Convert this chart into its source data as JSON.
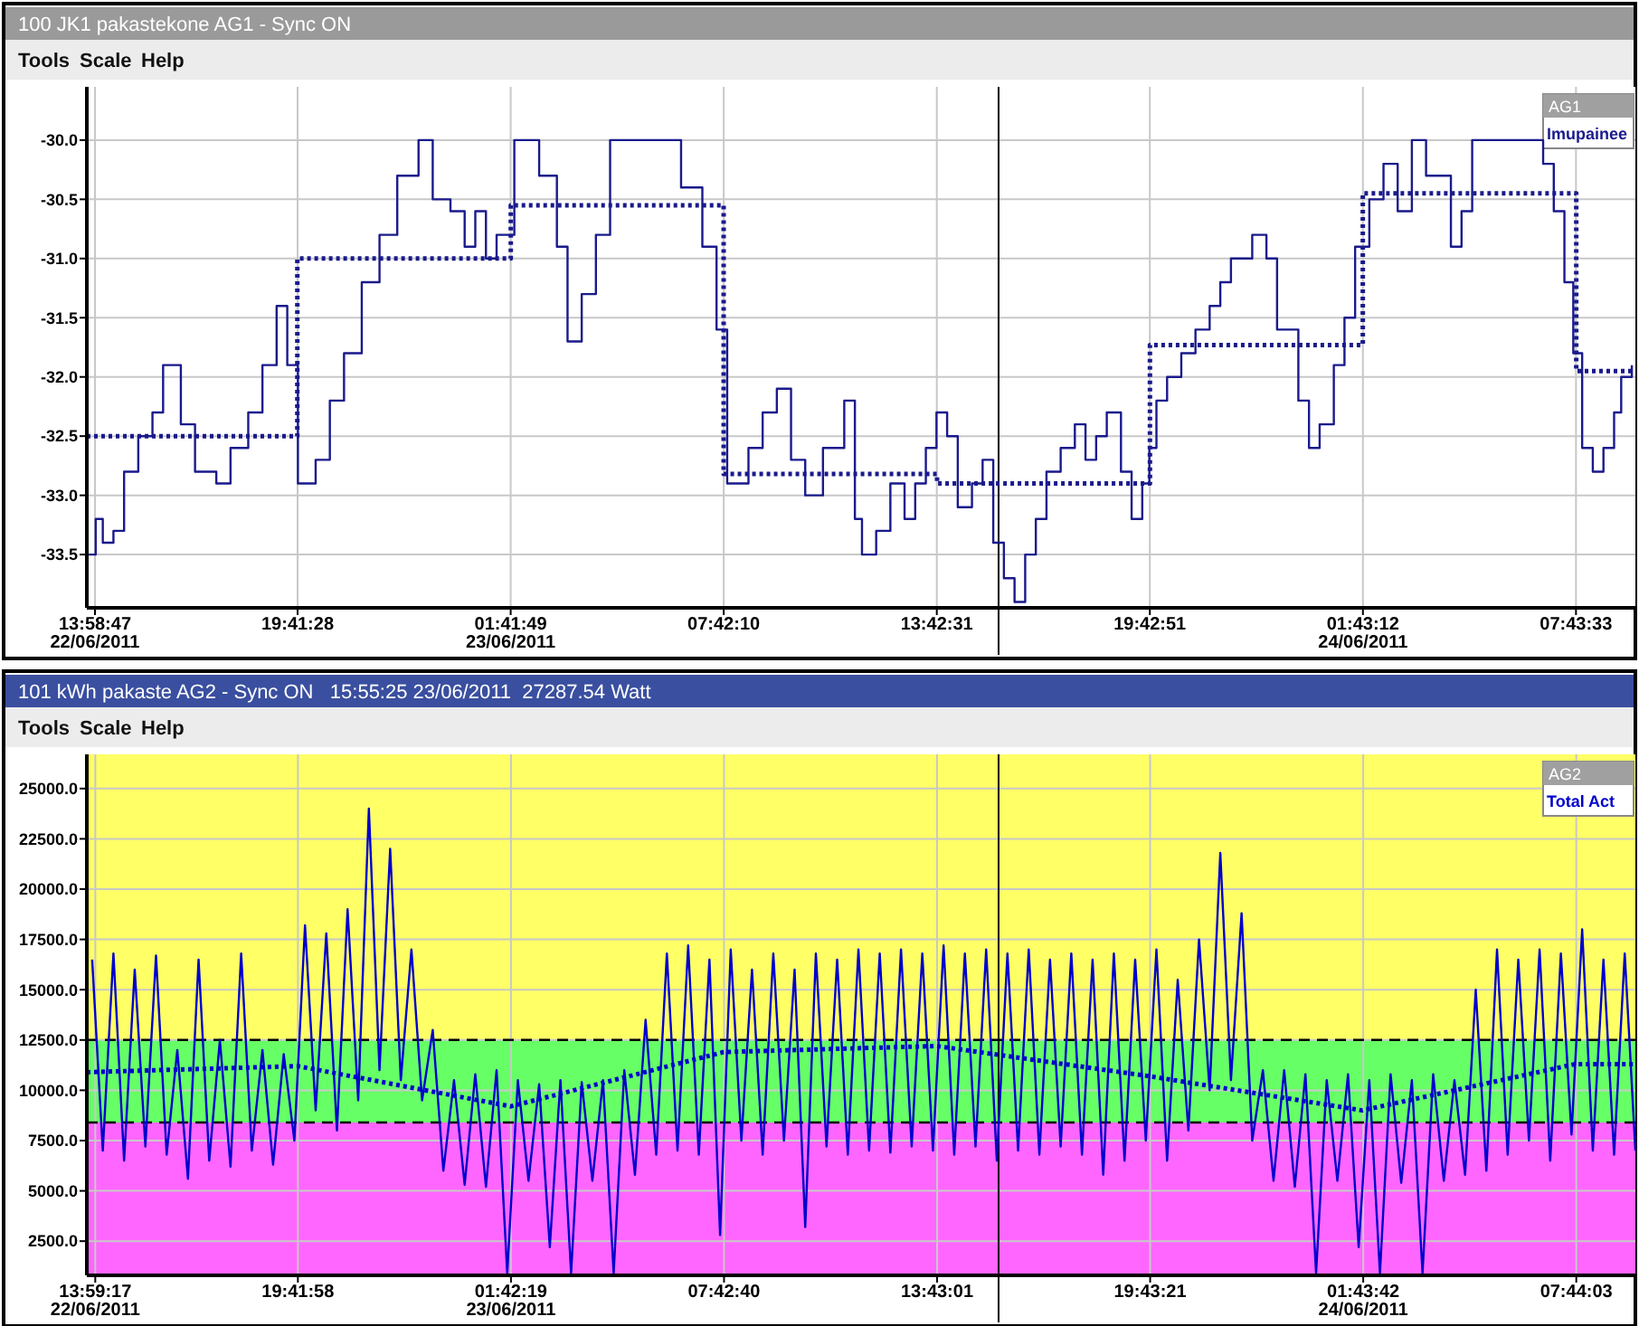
{
  "chart_data": [
    {
      "type": "step",
      "title": "100 JK1 pakastekone AG1 - Sync ON",
      "annotations": [
        "Tools",
        "Scale",
        "Help"
      ],
      "legend_title": "AG1",
      "legend": "top right",
      "grid": true,
      "marker": "none",
      "xlim": [
        "2011-06-22T13:45",
        "2011-06-24T09:24"
      ],
      "ylim": [
        -33.95,
        -29.55
      ],
      "xticks": [
        {
          "value": "2011-06-22T13:58:47",
          "label": "13:58:47\n22/06/2011"
        },
        {
          "value": "2011-06-22T19:41:28",
          "label": "19:41:28"
        },
        {
          "value": "2011-06-23T01:41:49",
          "label": "01:41:49\n23/06/2011"
        },
        {
          "value": "2011-06-23T07:42:10",
          "label": "07:42:10"
        },
        {
          "value": "2011-06-23T13:42:31",
          "label": "13:42:31"
        },
        {
          "value": "2011-06-23T19:42:51",
          "label": "19:42:51"
        },
        {
          "value": "2011-06-24T01:43:12",
          "label": "01:43:12\n24/06/2011"
        },
        {
          "value": "2011-06-24T07:43:33",
          "label": "07:43:33"
        }
      ],
      "yticks": [
        {
          "value": -33.5,
          "label": "-33.5"
        },
        {
          "value": -33,
          "label": "-33.0"
        },
        {
          "value": -32.5,
          "label": "-32.5"
        },
        {
          "value": -32,
          "label": "-32.0"
        },
        {
          "value": -31.5,
          "label": "-31.5"
        },
        {
          "value": -31,
          "label": "-31.0"
        },
        {
          "value": -30.5,
          "label": "-30.5"
        },
        {
          "value": -30,
          "label": "-30.0"
        }
      ],
      "ref_lines": [
        {
          "axis": "x",
          "value": "2011-06-23T15:27",
          "color": "#000000",
          "line_style": "solid"
        }
      ],
      "series": [
        {
          "name": "Imupainee",
          "color": "#1a1a8c",
          "line_style": "solid",
          "x": [
            "2011-06-22T13:48",
            "2011-06-22T14:00",
            "2011-06-22T14:12",
            "2011-06-22T14:30",
            "2011-06-22T14:48",
            "2011-06-22T15:12",
            "2011-06-22T15:36",
            "2011-06-22T15:54",
            "2011-06-22T16:24",
            "2011-06-22T16:48",
            "2011-06-22T17:24",
            "2011-06-22T17:48",
            "2011-06-22T18:18",
            "2011-06-22T18:42",
            "2011-06-22T19:06",
            "2011-06-22T19:24",
            "2011-06-22T19:42",
            "2011-06-22T20:12",
            "2011-06-22T20:36",
            "2011-06-22T21:00",
            "2011-06-22T21:30",
            "2011-06-22T22:00",
            "2011-06-22T22:30",
            "2011-06-22T23:06",
            "2011-06-22T23:30",
            "2011-06-23T00:00",
            "2011-06-23T00:24",
            "2011-06-23T00:42",
            "2011-06-23T01:00",
            "2011-06-23T01:18",
            "2011-06-23T01:48",
            "2011-06-23T02:30",
            "2011-06-23T03:00",
            "2011-06-23T03:18",
            "2011-06-23T03:42",
            "2011-06-23T04:06",
            "2011-06-23T04:30",
            "2011-06-23T06:30",
            "2011-06-23T07:06",
            "2011-06-23T07:30",
            "2011-06-23T07:48",
            "2011-06-23T08:24",
            "2011-06-23T08:48",
            "2011-06-23T09:12",
            "2011-06-23T09:36",
            "2011-06-23T10:00",
            "2011-06-23T10:30",
            "2011-06-23T11:06",
            "2011-06-23T11:24",
            "2011-06-23T11:36",
            "2011-06-23T12:00",
            "2011-06-23T12:24",
            "2011-06-23T12:48",
            "2011-06-23T13:06",
            "2011-06-23T13:24",
            "2011-06-23T13:42",
            "2011-06-23T14:00",
            "2011-06-23T14:18",
            "2011-06-23T14:42",
            "2011-06-23T15:00",
            "2011-06-23T15:18",
            "2011-06-23T15:36",
            "2011-06-23T15:54",
            "2011-06-23T16:12",
            "2011-06-23T16:30",
            "2011-06-23T16:48",
            "2011-06-23T17:12",
            "2011-06-23T17:36",
            "2011-06-23T17:54",
            "2011-06-23T18:12",
            "2011-06-23T18:30",
            "2011-06-23T18:54",
            "2011-06-23T19:12",
            "2011-06-23T19:30",
            "2011-06-23T19:42",
            "2011-06-23T19:54",
            "2011-06-23T20:12",
            "2011-06-23T20:36",
            "2011-06-23T21:00",
            "2011-06-23T21:24",
            "2011-06-23T21:42",
            "2011-06-23T22:00",
            "2011-06-23T22:36",
            "2011-06-23T23:00",
            "2011-06-23T23:18",
            "2011-06-23T23:54",
            "2011-06-24T00:12",
            "2011-06-24T00:30",
            "2011-06-24T00:54",
            "2011-06-24T01:12",
            "2011-06-24T01:30",
            "2011-06-24T01:54",
            "2011-06-24T02:18",
            "2011-06-24T02:42",
            "2011-06-24T03:06",
            "2011-06-24T03:30",
            "2011-06-24T04:12",
            "2011-06-24T04:30",
            "2011-06-24T04:48",
            "2011-06-24T06:48",
            "2011-06-24T07:06",
            "2011-06-24T07:24",
            "2011-06-24T07:39",
            "2011-06-24T07:54",
            "2011-06-24T08:12",
            "2011-06-24T08:30",
            "2011-06-24T08:48",
            "2011-06-24T09:00",
            "2011-06-24T09:18"
          ],
          "values": [
            -33.5,
            -33.2,
            -33.4,
            -33.3,
            -32.8,
            -32.5,
            -32.3,
            -31.9,
            -32.4,
            -32.8,
            -32.9,
            -32.6,
            -32.3,
            -31.9,
            -31.4,
            -31.9,
            -32.9,
            -32.7,
            -32.2,
            -31.8,
            -31.2,
            -30.8,
            -30.3,
            -30.0,
            -30.5,
            -30.6,
            -30.9,
            -30.6,
            -31.0,
            -30.8,
            -30.0,
            -30.3,
            -30.9,
            -31.7,
            -31.3,
            -30.8,
            -30.0,
            -30.4,
            -30.9,
            -31.6,
            -32.9,
            -32.6,
            -32.3,
            -32.1,
            -32.7,
            -33.0,
            -32.6,
            -32.2,
            -33.2,
            -33.5,
            -33.3,
            -32.9,
            -33.2,
            -32.9,
            -32.6,
            -32.3,
            -32.5,
            -33.1,
            -32.9,
            -32.7,
            -33.4,
            -33.7,
            -33.9,
            -33.5,
            -33.2,
            -32.8,
            -32.6,
            -32.4,
            -32.7,
            -32.5,
            -32.3,
            -32.8,
            -33.2,
            -32.9,
            -32.6,
            -32.2,
            -32.0,
            -31.8,
            -31.6,
            -31.4,
            -31.2,
            -31.0,
            -30.8,
            -31.0,
            -31.6,
            -32.2,
            -32.6,
            -32.4,
            -31.9,
            -31.5,
            -30.9,
            -30.5,
            -30.2,
            -30.6,
            -30.0,
            -30.3,
            -30.9,
            -30.6,
            -30.0,
            -30.2,
            -30.6,
            -31.2,
            -31.8,
            -32.6,
            -32.8,
            -32.6,
            -32.3,
            -32.0,
            -31.9
          ]
        },
        {
          "color": "#1a1a8c",
          "line_style": "dotted",
          "x": [
            "2011-06-22T13:45",
            "2011-06-22T19:41",
            "2011-06-23T01:42",
            "2011-06-23T07:42",
            "2011-06-23T13:43",
            "2011-06-23T19:43",
            "2011-06-24T01:43",
            "2011-06-24T07:44",
            "2011-06-24T09:24"
          ],
          "values": [
            -32.5,
            -31.0,
            -30.55,
            -32.82,
            -32.9,
            -31.73,
            -30.45,
            -31.95,
            -31.95
          ]
        }
      ]
    },
    {
      "type": "line",
      "title": "101 kWh pakaste AG2 - Sync ON   15:55:25 23/06/2011  27287.54 Watt",
      "annotations": [
        "Tools",
        "Scale",
        "Help"
      ],
      "legend_title": "AG2",
      "legend": "top right",
      "grid": true,
      "marker": "none",
      "xlim": [
        "2011-06-22T13:45",
        "2011-06-24T09:24"
      ],
      "ylim": [
        800,
        26700
      ],
      "xticks": [
        {
          "value": "2011-06-22T13:59:17",
          "label": "13:59:17\n22/06/2011"
        },
        {
          "value": "2011-06-22T19:41:58",
          "label": "19:41:58"
        },
        {
          "value": "2011-06-23T01:42:19",
          "label": "01:42:19\n23/06/2011"
        },
        {
          "value": "2011-06-23T07:42:40",
          "label": "07:42:40"
        },
        {
          "value": "2011-06-23T13:43:01",
          "label": "13:43:01"
        },
        {
          "value": "2011-06-23T19:43:21",
          "label": "19:43:21"
        },
        {
          "value": "2011-06-24T01:43:42",
          "label": "01:43:42\n24/06/2011"
        },
        {
          "value": "2011-06-24T07:44:03",
          "label": "07:44:03"
        }
      ],
      "yticks": [
        {
          "value": 2500,
          "label": "2500.0"
        },
        {
          "value": 5000,
          "label": "5000.0"
        },
        {
          "value": 7500,
          "label": "7500.0"
        },
        {
          "value": 10000,
          "label": "10000.0"
        },
        {
          "value": 12500,
          "label": "12500.0"
        },
        {
          "value": 15000,
          "label": "15000.0"
        },
        {
          "value": 17500,
          "label": "17500.0"
        },
        {
          "value": 20000,
          "label": "20000.0"
        },
        {
          "value": 22500,
          "label": "22500.0"
        },
        {
          "value": 25000,
          "label": "25000.0"
        }
      ],
      "bands": [
        {
          "axis": "y",
          "from": 12500,
          "to": 26700,
          "color": "#ffff66"
        },
        {
          "axis": "y",
          "from": 8400,
          "to": 12500,
          "color": "#66ff66"
        },
        {
          "axis": "y",
          "from": 800,
          "to": 8400,
          "color": "#ff66ff"
        }
      ],
      "ref_lines": [
        {
          "axis": "y",
          "value": 12500,
          "color": "#000000",
          "line_style": "dashed"
        },
        {
          "axis": "y",
          "value": 8400,
          "color": "#000000",
          "line_style": "dashed"
        },
        {
          "axis": "x",
          "value": "2011-06-23T15:27",
          "color": "#000000",
          "line_style": "solid"
        }
      ],
      "series": [
        {
          "name": "Total Act",
          "color": "#0000cc",
          "line_style": "solid",
          "x": [
            "2011-06-22T13:54",
            "2011-06-22T14:12",
            "2011-06-22T14:30",
            "2011-06-22T14:48",
            "2011-06-22T15:06",
            "2011-06-22T15:24",
            "2011-06-22T15:42",
            "2011-06-22T16:00",
            "2011-06-22T16:18",
            "2011-06-22T16:36",
            "2011-06-22T16:54",
            "2011-06-22T17:12",
            "2011-06-22T17:30",
            "2011-06-22T17:48",
            "2011-06-22T18:06",
            "2011-06-22T18:24",
            "2011-06-22T18:42",
            "2011-06-22T19:00",
            "2011-06-22T19:18",
            "2011-06-22T19:36",
            "2011-06-22T19:54",
            "2011-06-22T20:12",
            "2011-06-22T20:30",
            "2011-06-22T20:48",
            "2011-06-22T21:06",
            "2011-06-22T21:24",
            "2011-06-22T21:42",
            "2011-06-22T22:00",
            "2011-06-22T22:18",
            "2011-06-22T22:36",
            "2011-06-22T22:54",
            "2011-06-22T23:12",
            "2011-06-22T23:30",
            "2011-06-22T23:48",
            "2011-06-23T00:06",
            "2011-06-23T00:24",
            "2011-06-23T00:42",
            "2011-06-23T01:00",
            "2011-06-23T01:18",
            "2011-06-23T01:36",
            "2011-06-23T01:54",
            "2011-06-23T02:12",
            "2011-06-23T02:30",
            "2011-06-23T02:48",
            "2011-06-23T03:06",
            "2011-06-23T03:24",
            "2011-06-23T03:42",
            "2011-06-23T04:00",
            "2011-06-23T04:18",
            "2011-06-23T04:36",
            "2011-06-23T04:54",
            "2011-06-23T05:12",
            "2011-06-23T05:30",
            "2011-06-23T05:48",
            "2011-06-23T06:06",
            "2011-06-23T06:24",
            "2011-06-23T06:42",
            "2011-06-23T07:00",
            "2011-06-23T07:18",
            "2011-06-23T07:36",
            "2011-06-23T07:54",
            "2011-06-23T08:12",
            "2011-06-23T08:30",
            "2011-06-23T08:48",
            "2011-06-23T09:06",
            "2011-06-23T09:24",
            "2011-06-23T09:42",
            "2011-06-23T10:00",
            "2011-06-23T10:18",
            "2011-06-23T10:36",
            "2011-06-23T10:54",
            "2011-06-23T11:12",
            "2011-06-23T11:30",
            "2011-06-23T11:48",
            "2011-06-23T12:06",
            "2011-06-23T12:24",
            "2011-06-23T12:42",
            "2011-06-23T13:00",
            "2011-06-23T13:18",
            "2011-06-23T13:36",
            "2011-06-23T13:54",
            "2011-06-23T14:12",
            "2011-06-23T14:30",
            "2011-06-23T14:48",
            "2011-06-23T15:06",
            "2011-06-23T15:24",
            "2011-06-23T15:42",
            "2011-06-23T16:00",
            "2011-06-23T16:18",
            "2011-06-23T16:36",
            "2011-06-23T16:54",
            "2011-06-23T17:12",
            "2011-06-23T17:30",
            "2011-06-23T17:48",
            "2011-06-23T18:06",
            "2011-06-23T18:24",
            "2011-06-23T18:42",
            "2011-06-23T19:00",
            "2011-06-23T19:18",
            "2011-06-23T19:36",
            "2011-06-23T19:54",
            "2011-06-23T20:12",
            "2011-06-23T20:30",
            "2011-06-23T20:48",
            "2011-06-23T21:06",
            "2011-06-23T21:24",
            "2011-06-23T21:42",
            "2011-06-23T22:00",
            "2011-06-23T22:18",
            "2011-06-23T22:36",
            "2011-06-23T22:54",
            "2011-06-23T23:12",
            "2011-06-23T23:30",
            "2011-06-23T23:48",
            "2011-06-24T00:06",
            "2011-06-24T00:24",
            "2011-06-24T00:42",
            "2011-06-24T01:00",
            "2011-06-24T01:18",
            "2011-06-24T01:36",
            "2011-06-24T01:54",
            "2011-06-24T02:12",
            "2011-06-24T02:30",
            "2011-06-24T02:48",
            "2011-06-24T03:06",
            "2011-06-24T03:24",
            "2011-06-24T03:42",
            "2011-06-24T04:00",
            "2011-06-24T04:18",
            "2011-06-24T04:36",
            "2011-06-24T04:54",
            "2011-06-24T05:12",
            "2011-06-24T05:30",
            "2011-06-24T05:48",
            "2011-06-24T06:06",
            "2011-06-24T06:24",
            "2011-06-24T06:42",
            "2011-06-24T07:00",
            "2011-06-24T07:18",
            "2011-06-24T07:36",
            "2011-06-24T07:54",
            "2011-06-24T08:12",
            "2011-06-24T08:30",
            "2011-06-24T08:48",
            "2011-06-24T09:06",
            "2011-06-24T09:24"
          ],
          "values": [
            16500,
            7000,
            16800,
            6500,
            16000,
            7200,
            16700,
            6800,
            12000,
            5600,
            16500,
            6500,
            12500,
            6200,
            16800,
            7000,
            12000,
            6300,
            11800,
            7500,
            18200,
            9000,
            17800,
            8000,
            19000,
            9500,
            24000,
            11000,
            22000,
            10500,
            17000,
            9500,
            13000,
            6000,
            10500,
            5300,
            10800,
            5200,
            11000,
            900,
            10500,
            5500,
            10300,
            2200,
            10500,
            900,
            10400,
            5500,
            10500,
            900,
            11000,
            5800,
            13500,
            6800,
            16800,
            7000,
            17200,
            6800,
            16500,
            2800,
            17000,
            7500,
            16000,
            6800,
            16800,
            7500,
            16000,
            3200,
            16800,
            7200,
            16500,
            6800,
            17000,
            7000,
            16800,
            6900,
            17000,
            7200,
            16800,
            7000,
            17200,
            6800,
            16800,
            7200,
            17000,
            6500,
            16800,
            7000,
            17000,
            6800,
            16500,
            7200,
            16800,
            6800,
            16500,
            5800,
            16800,
            6500,
            16500,
            7500,
            17000,
            6500,
            15500,
            8000,
            17500,
            10000,
            21800,
            10500,
            18800,
            7500,
            11000,
            5500,
            11000,
            5200,
            10800,
            900,
            10500,
            5500,
            10800,
            2200,
            10500,
            900,
            10800,
            5400,
            10500,
            900,
            10800,
            5500,
            10500,
            5800,
            15000,
            6000,
            17000,
            6800,
            16500,
            7500,
            17000,
            6500,
            16800,
            7800,
            18000,
            7000,
            16500,
            6800,
            16800,
            7000
          ]
        },
        {
          "color": "#0000cc",
          "line_style": "dotted",
          "x": [
            "2011-06-22T13:45",
            "2011-06-22T19:42",
            "2011-06-23T01:42",
            "2011-06-23T07:42",
            "2011-06-23T13:42",
            "2011-06-23T19:42",
            "2011-06-24T01:42",
            "2011-06-24T07:42",
            "2011-06-24T09:24"
          ],
          "values": [
            10900,
            11200,
            9200,
            11900,
            12200,
            10700,
            9000,
            11300,
            11300
          ]
        }
      ]
    }
  ]
}
